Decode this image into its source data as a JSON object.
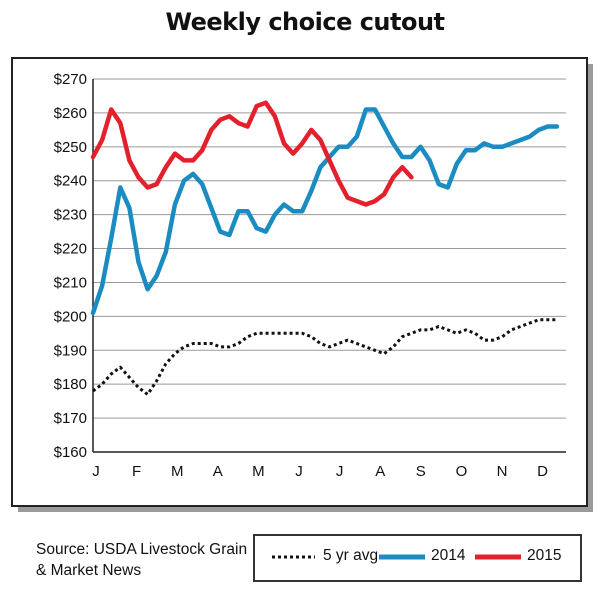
{
  "chart_data": {
    "type": "line",
    "title": "Weekly choice cutout",
    "source": "Source: USDA Livestock Grain & Market News",
    "x_ticks": [
      "J",
      "F",
      "M",
      "A",
      "M",
      "J",
      "J",
      "A",
      "S",
      "O",
      "N",
      "D"
    ],
    "y_ticks": [
      "$160",
      "$170",
      "$180",
      "$190",
      "$200",
      "$210",
      "$220",
      "$230",
      "$240",
      "$250",
      "$260",
      "$270"
    ],
    "ylim": [
      160,
      270
    ],
    "xlim": [
      0,
      52
    ],
    "grid": true,
    "legend_position": "bottom-right",
    "series": [
      {
        "name": "5 yr avg",
        "style": "dotted",
        "color": "#111111",
        "x": [
          0,
          1,
          2,
          3,
          4,
          5,
          6,
          7,
          8,
          9,
          10,
          11,
          12,
          13,
          14,
          15,
          16,
          17,
          18,
          19,
          20,
          21,
          22,
          23,
          24,
          25,
          26,
          27,
          28,
          29,
          30,
          31,
          32,
          33,
          34,
          35,
          36,
          37,
          38,
          39,
          40,
          41,
          42,
          43,
          44,
          45,
          46,
          47,
          48,
          49,
          50,
          51
        ],
        "values": [
          178,
          180,
          183,
          185,
          182,
          179,
          177,
          181,
          186,
          189,
          191,
          192,
          192,
          192,
          191,
          191,
          192,
          194,
          195,
          195,
          195,
          195,
          195,
          195,
          194,
          192,
          191,
          192,
          193,
          192,
          191,
          190,
          189,
          191,
          194,
          195,
          196,
          196,
          197,
          196,
          195,
          196,
          195,
          193,
          193,
          194,
          196,
          197,
          198,
          199,
          199,
          199
        ]
      },
      {
        "name": "2014",
        "style": "solid",
        "color": "#1a8cc1",
        "x": [
          0,
          1,
          2,
          3,
          4,
          5,
          6,
          7,
          8,
          9,
          10,
          11,
          12,
          13,
          14,
          15,
          16,
          17,
          18,
          19,
          20,
          21,
          22,
          23,
          24,
          25,
          26,
          27,
          28,
          29,
          30,
          31,
          32,
          33,
          34,
          35,
          36,
          37,
          38,
          39,
          40,
          41,
          42,
          43,
          44,
          45,
          46,
          47,
          48,
          49,
          50,
          51
        ],
        "values": [
          201,
          209,
          223,
          238,
          232,
          216,
          208,
          212,
          219,
          233,
          240,
          242,
          239,
          232,
          225,
          224,
          231,
          231,
          226,
          225,
          230,
          233,
          231,
          231,
          237,
          244,
          247,
          250,
          250,
          253,
          261,
          261,
          256,
          251,
          247,
          247,
          250,
          246,
          239,
          238,
          245,
          249,
          249,
          251,
          250,
          250,
          251,
          252,
          253,
          255,
          256,
          256
        ]
      },
      {
        "name": "2015",
        "style": "solid",
        "color": "#e3202b",
        "x": [
          0,
          1,
          2,
          3,
          4,
          5,
          6,
          7,
          8,
          9,
          10,
          11,
          12,
          13,
          14,
          15,
          16,
          17,
          18,
          19,
          20,
          21,
          22,
          23,
          24,
          25,
          26,
          27,
          28,
          29,
          30,
          31,
          32,
          33,
          34,
          35
        ],
        "values": [
          247,
          252,
          261,
          257,
          246,
          241,
          238,
          239,
          244,
          248,
          246,
          246,
          249,
          255,
          258,
          259,
          257,
          256,
          262,
          263,
          259,
          251,
          248,
          251,
          255,
          252,
          246,
          240,
          235,
          234,
          233,
          234,
          236,
          241,
          244,
          241
        ]
      }
    ]
  }
}
